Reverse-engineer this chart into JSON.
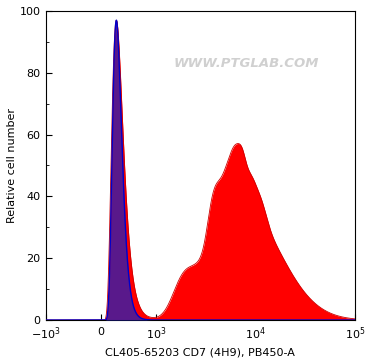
{
  "title": "",
  "xlabel": "CL405-65203 CD7 (4H9), PB450-A",
  "ylabel": "Relative cell number",
  "xlim_left": -1000,
  "xlim_right": 100000,
  "ylim": [
    0,
    100
  ],
  "yticks": [
    0,
    20,
    40,
    60,
    80,
    100
  ],
  "watermark": "WWW.PTGLAB.COM",
  "background_color": "#ffffff",
  "blue_fill": "#2222bb",
  "red_fill": "#ff0000",
  "blue_line": "#0000cc",
  "red_line": "#cc0000",
  "linthresh": 1000,
  "linscale": 0.5
}
